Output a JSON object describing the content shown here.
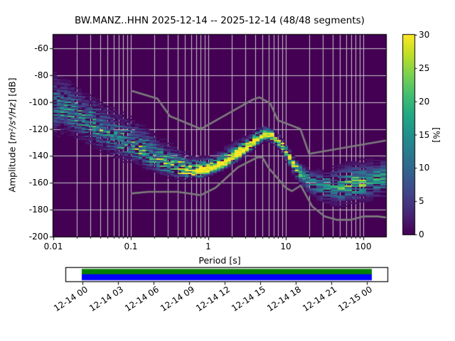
{
  "title": "BW.MANZ..HHN   2025-12-14 -- 2025-12-14  (48/48 segments)",
  "axes": {
    "xlabel": "Period [s]",
    "ylabel_prefix": "Amplitude [",
    "ylabel_math": "m²/s⁴/Hz",
    "ylabel_suffix": "] [dB]",
    "colorbar_label": "[%]"
  },
  "chart_data": {
    "type": "heatmap",
    "title": "BW.MANZ..HHN   2025-12-14 -- 2025-12-14  (48/48 segments)",
    "xlabel": "Period [s]",
    "ylabel": "Amplitude [m^2/s^4/Hz] [dB]",
    "xscale": "log",
    "xlim": [
      0.01,
      196
    ],
    "ylim": [
      -200,
      -50
    ],
    "grid": true,
    "xticks": [
      0.01,
      0.1,
      1,
      10,
      100
    ],
    "xtick_labels": [
      "0.01",
      "0.1",
      "1",
      "10",
      "100"
    ],
    "yticks": [
      -60,
      -80,
      -100,
      -120,
      -140,
      -160,
      -180,
      -200
    ],
    "colorbar": {
      "label": "[%]",
      "min": 0,
      "max": 30,
      "ticks": [
        0,
        5,
        10,
        15,
        20,
        25,
        30
      ],
      "colormap": "viridis",
      "stops": [
        "#440154",
        "#482475",
        "#414487",
        "#355f8d",
        "#2a788e",
        "#21918c",
        "#22a884",
        "#44bf70",
        "#7ad151",
        "#bddf26",
        "#fde725"
      ]
    },
    "colors": {
      "plot_background": "#440154",
      "grid": "#c6c6c6",
      "noise_model_line": "#7d7d7d",
      "timeline_top_bar": "#008000",
      "timeline_bottom_bar": "#0000ff"
    },
    "ppsd_ridge_comment": "columns: period_s, center_dB, spread_up_dB, spread_down_dB, peak_probability_pct",
    "ppsd_ridge": [
      [
        0.01,
        -103,
        11,
        9,
        11
      ],
      [
        0.015,
        -107,
        11,
        8,
        11
      ],
      [
        0.022,
        -112,
        10,
        7,
        11
      ],
      [
        0.033,
        -118,
        10,
        7,
        12
      ],
      [
        0.05,
        -124,
        9,
        6,
        12
      ],
      [
        0.07,
        -129,
        9,
        6,
        13
      ],
      [
        0.1,
        -133,
        9,
        5,
        13
      ],
      [
        0.15,
        -138,
        9,
        5,
        14
      ],
      [
        0.22,
        -144,
        8,
        4,
        16
      ],
      [
        0.33,
        -148.5,
        7,
        3,
        20
      ],
      [
        0.45,
        -151.5,
        6,
        2.5,
        26
      ],
      [
        0.6,
        -152.5,
        5,
        2,
        30
      ],
      [
        0.8,
        -152.3,
        4.5,
        2,
        30
      ],
      [
        1.0,
        -150.5,
        4,
        2,
        30
      ],
      [
        1.5,
        -146.5,
        4,
        2,
        30
      ],
      [
        2.2,
        -141,
        4,
        2,
        30
      ],
      [
        3.3,
        -133.5,
        3.5,
        2,
        30
      ],
      [
        4.5,
        -127,
        3,
        2,
        30
      ],
      [
        5.6,
        -123.5,
        2.5,
        2,
        30
      ],
      [
        7.0,
        -125.5,
        2,
        2.5,
        28
      ],
      [
        8.5,
        -130,
        2,
        2.5,
        26
      ],
      [
        10,
        -136,
        2,
        3,
        24
      ],
      [
        13,
        -147,
        2.5,
        3.5,
        22
      ],
      [
        16,
        -153,
        3,
        4,
        16
      ],
      [
        20,
        -157.5,
        3.5,
        5,
        12
      ],
      [
        30,
        -162,
        5,
        6,
        11
      ],
      [
        45,
        -163.5,
        7,
        6,
        13
      ],
      [
        70,
        -161.5,
        7,
        6,
        17
      ],
      [
        100,
        -160,
        7,
        6,
        15
      ],
      [
        140,
        -158,
        6.5,
        6,
        14
      ],
      [
        196,
        -155.5,
        6,
        7,
        13
      ]
    ],
    "ppsd_fan_comment": "faint secondary branch above ridge: period_s, center_dB, peak_pct (spread 4 dB)",
    "ppsd_fan": [
      [
        1.0,
        -146,
        0
      ],
      [
        1.3,
        -143,
        4
      ],
      [
        2.0,
        -138,
        5
      ],
      [
        3.0,
        -132,
        5
      ],
      [
        4.2,
        -128,
        4
      ],
      [
        5.2,
        -126,
        0
      ]
    ],
    "artifact_line": {
      "period_range": [
        38,
        196
      ],
      "db": -160.5,
      "probability_pct": 8.5
    },
    "noise_models": {
      "nhnm": [
        [
          0.1,
          -91.5
        ],
        [
          0.22,
          -97.4
        ],
        [
          0.32,
          -110.5
        ],
        [
          0.8,
          -120.0
        ],
        [
          3.8,
          -98.0
        ],
        [
          4.6,
          -96.5
        ],
        [
          6.3,
          -101.0
        ],
        [
          7.9,
          -113.5
        ],
        [
          15.4,
          -120.0
        ],
        [
          20.0,
          -138.5
        ],
        [
          354.8,
          -126.0
        ]
      ],
      "nlnm": [
        [
          0.1,
          -168.0
        ],
        [
          0.17,
          -166.7
        ],
        [
          0.4,
          -166.7
        ],
        [
          0.8,
          -169.2
        ],
        [
          1.24,
          -163.7
        ],
        [
          2.4,
          -148.6
        ],
        [
          4.3,
          -141.1
        ],
        [
          5.0,
          -141.1
        ],
        [
          6.0,
          -149.0
        ],
        [
          10.0,
          -163.8
        ],
        [
          12.0,
          -166.2
        ],
        [
          15.6,
          -162.1
        ],
        [
          21.9,
          -177.5
        ],
        [
          31.6,
          -185.0
        ],
        [
          45.0,
          -187.5
        ],
        [
          70.0,
          -187.5
        ],
        [
          101.0,
          -185.0
        ],
        [
          154.0,
          -185.0
        ],
        [
          328.0,
          -187.5
        ]
      ]
    },
    "timeline": {
      "labels": [
        "12-14 00",
        "12-14 03",
        "12-14 06",
        "12-14 09",
        "12-14 12",
        "12-14 15",
        "12-14 18",
        "12-14 21",
        "12-15 00"
      ],
      "bar_top_color": "#008000",
      "bar_bottom_color": "#0000ff"
    }
  }
}
